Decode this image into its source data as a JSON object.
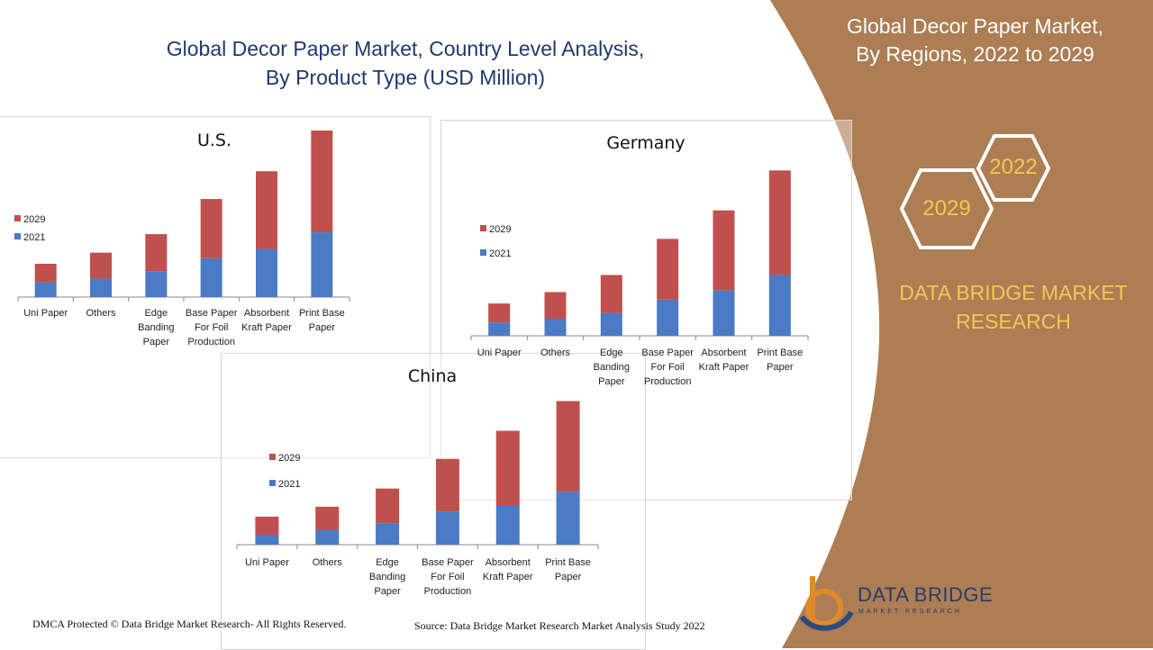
{
  "header": {
    "title_line1": "Global Decor Paper Market, Country Level Analysis,",
    "title_line2": "By Product Type (USD Million)"
  },
  "side_panel": {
    "title_line1": "Global Decor Paper Market,",
    "title_line2": "By Regions,  2022 to 2029",
    "hex_top": "2022",
    "hex_bottom": "2029",
    "brand_line1": "DATA BRIDGE MARKET",
    "brand_line2": "RESEARCH"
  },
  "footer": {
    "copyright": "DMCA Protected © Data Bridge Market Research- All Rights Reserved.",
    "source": "Source: Data Bridge Market Research Market Analysis Study 2022"
  },
  "logo": {
    "name": "DATA BRIDGE",
    "tagline": "MARKET RESEARCH"
  },
  "colors": {
    "series_2021": "#4a7bc4",
    "series_2029": "#c0504d",
    "side_panel": "#ad7d54",
    "title_blue": "#1f3a6e",
    "accent_gold": "#f4c656"
  },
  "chart_data": [
    {
      "type": "bar",
      "stacked": true,
      "title": "U.S.",
      "categories": [
        "Uni Paper",
        "Others",
        "Edge Banding Paper",
        "Base Paper For Foil Production",
        "Absorbent Kraft Paper",
        "Print Base Paper"
      ],
      "category_lines": [
        [
          "Uni Paper"
        ],
        [
          "Others"
        ],
        [
          "Edge",
          "Banding",
          "Paper"
        ],
        [
          "Base Paper",
          "For Foil",
          "Production"
        ],
        [
          "Absorbent",
          "Kraft Paper"
        ],
        [
          "Print Base",
          "Paper"
        ]
      ],
      "series": [
        {
          "name": "2021",
          "values": [
            8,
            10,
            14,
            21,
            26,
            35
          ]
        },
        {
          "name": "2029",
          "values": [
            10,
            14,
            20,
            32,
            42,
            55
          ]
        }
      ],
      "ylim": [
        0,
        90
      ],
      "legend": "left"
    },
    {
      "type": "bar",
      "stacked": true,
      "title": "Germany",
      "categories": [
        "Uni Paper",
        "Others",
        "Edge Banding Paper",
        "Base Paper For Foil Production",
        "Absorbent Kraft Paper",
        "Print Base Paper"
      ],
      "category_lines": [
        [
          "Uni Paper"
        ],
        [
          "Others"
        ],
        [
          "Edge",
          "Banding",
          "Paper"
        ],
        [
          "Base Paper",
          "For Foil",
          "Production"
        ],
        [
          "Absorbent",
          "Kraft Paper"
        ],
        [
          "Print Base",
          "Paper"
        ]
      ],
      "series": [
        {
          "name": "2021",
          "values": [
            7,
            9,
            12,
            19,
            24,
            32
          ]
        },
        {
          "name": "2029",
          "values": [
            10,
            14,
            20,
            32,
            42,
            55
          ]
        }
      ],
      "ylim": [
        0,
        90
      ],
      "legend": "left"
    },
    {
      "type": "bar",
      "stacked": true,
      "title": "China",
      "categories": [
        "Uni Paper",
        "Others",
        "Edge Banding Paper",
        "Base Paper For Foil Production",
        "Absorbent Kraft Paper",
        "Print Base Paper"
      ],
      "category_lines": [
        [
          "Uni Paper"
        ],
        [
          "Others"
        ],
        [
          "Edge",
          "Banding",
          "Paper"
        ],
        [
          "Base Paper",
          "For Foil",
          "Production"
        ],
        [
          "Absorbent",
          "Kraft Paper"
        ],
        [
          "Print Base",
          "Paper"
        ]
      ],
      "series": [
        {
          "name": "2021",
          "values": [
            6,
            9,
            13,
            20,
            24,
            32
          ]
        },
        {
          "name": "2029",
          "values": [
            11,
            14,
            21,
            32,
            45,
            55
          ]
        }
      ],
      "ylim": [
        0,
        90
      ],
      "legend": "left"
    }
  ]
}
